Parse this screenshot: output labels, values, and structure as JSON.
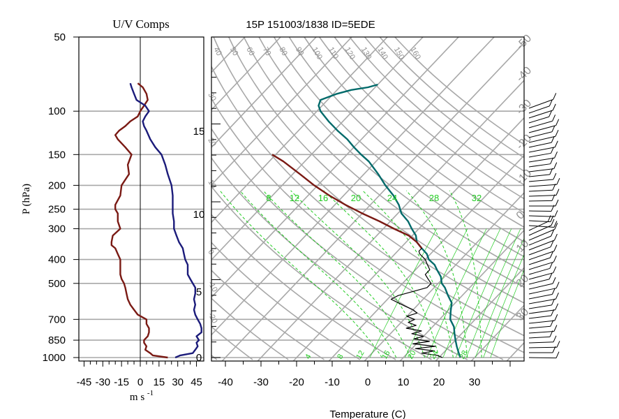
{
  "chart_data": [
    {
      "type": "line",
      "title": "U/V Comps",
      "xlabel": "m s -1",
      "ylabel": "P (hPa)",
      "xlim": [
        -50,
        50
      ],
      "xticks": [
        "-45",
        "-30",
        "-15",
        "0",
        "15",
        "30",
        "45"
      ],
      "ylim": [
        1000,
        50
      ],
      "ylog": true,
      "yticks": [
        "50",
        "100",
        "150",
        "200",
        "250",
        "300",
        "400",
        "500",
        "700",
        "850",
        "1000"
      ],
      "series": [
        {
          "color": "#7a1a14",
          "p": [
            1000,
            980,
            960,
            930,
            900,
            870,
            850,
            820,
            790,
            760,
            730,
            700,
            670,
            640,
            610,
            580,
            550,
            520,
            500,
            480,
            460,
            440,
            420,
            400,
            380,
            360,
            350,
            340,
            320,
            300,
            280,
            260,
            250,
            240,
            220,
            200,
            180,
            165,
            150,
            140,
            130,
            125,
            120,
            115,
            110,
            105,
            100,
            95,
            90,
            85,
            80,
            77
          ],
          "values": [
            22,
            10,
            8,
            4,
            5,
            3,
            3,
            6,
            7,
            7,
            5,
            5,
            -2,
            -5,
            -8,
            -10,
            -11,
            -12,
            -13,
            -15,
            -16,
            -16,
            -16,
            -16,
            -18,
            -20,
            -23,
            -23,
            -22,
            -16,
            -18,
            -18,
            -20,
            -20,
            -16,
            -15,
            -9,
            -10,
            -7,
            -12,
            -18,
            -20,
            -17,
            -12,
            -8,
            -2,
            0,
            3,
            6,
            5,
            2,
            -2
          ]
        },
        {
          "color": "#1b1b7a",
          "p": [
            1000,
            980,
            960,
            930,
            900,
            870,
            850,
            820,
            790,
            760,
            730,
            700,
            670,
            640,
            610,
            580,
            550,
            520,
            500,
            480,
            460,
            440,
            420,
            400,
            380,
            360,
            340,
            320,
            300,
            280,
            260,
            240,
            220,
            200,
            180,
            165,
            150,
            140,
            130,
            120,
            115,
            110,
            105,
            100,
            95,
            90,
            85,
            80,
            77
          ],
          "values": [
            28,
            32,
            42,
            44,
            46,
            45,
            47,
            45,
            49,
            49,
            48,
            46,
            44,
            43,
            44,
            43,
            44,
            44,
            42,
            40,
            38,
            38,
            38,
            36,
            35,
            34,
            31,
            29,
            27,
            27,
            26,
            26,
            26,
            25,
            22,
            20,
            17,
            12,
            8,
            5,
            3,
            2,
            4,
            7,
            4,
            -3,
            -5,
            -7,
            -8
          ]
        }
      ]
    },
    {
      "type": "line",
      "title": "15P 151003/1838 ID=5EDE",
      "xlabel": "Temperature (C)",
      "xlim": [
        -45,
        45
      ],
      "xticks": [
        "-40",
        "-30",
        "-20",
        "-10",
        "0",
        "10",
        "20",
        "30"
      ],
      "height_labels": [
        "15",
        "10",
        "5",
        "0"
      ],
      "mixing_ratio_labels": [
        "8",
        "12",
        "16",
        "20",
        "24",
        "28",
        "32"
      ],
      "mixing_ratio_bottom_labels": [
        "4",
        "8",
        "12",
        "16",
        "20",
        "24",
        "28"
      ],
      "theta_labels": [
        "40",
        "50",
        "60",
        "70",
        "80",
        "90",
        "100",
        "110",
        "120",
        "130",
        "140",
        "150",
        "160"
      ],
      "theta_left_labels": [
        "30",
        "20",
        "10",
        "0",
        "-10",
        "-20"
      ],
      "isotherm_labels": [
        "-50",
        "-40",
        "-30",
        "-20",
        "-10",
        "0",
        "10",
        "20",
        "30"
      ],
      "series": [
        {
          "name": "",
          "color": "#006a6a",
          "p": [
            1000,
            950,
            900,
            850,
            800,
            750,
            700,
            650,
            600,
            560,
            520,
            500,
            470,
            440,
            420,
            400,
            380,
            360,
            340,
            320,
            300,
            280,
            260,
            240,
            220,
            200,
            180,
            160,
            150,
            140,
            130,
            120,
            110,
            100,
            95,
            90,
            85,
            82,
            80,
            78
          ],
          "values": [
            26,
            24,
            22,
            20,
            18,
            16,
            13,
            11,
            9,
            6,
            3,
            1,
            -1,
            -4,
            -6,
            -9,
            -11,
            -14,
            -17,
            -19,
            -22,
            -25,
            -29,
            -32,
            -36,
            -41,
            -46,
            -52,
            -56,
            -60,
            -64,
            -69,
            -74,
            -79,
            -81,
            -82,
            -79,
            -76,
            -72,
            -70
          ]
        },
        {
          "name": "",
          "color": "#7a1a14",
          "p": [
            360,
            340,
            320,
            300,
            280,
            260,
            240,
            220,
            200,
            180,
            160,
            150
          ],
          "values": [
            -14,
            -17,
            -21,
            -27,
            -33,
            -40,
            -47,
            -54,
            -61,
            -68,
            -76,
            -81
          ]
        },
        {
          "name": "",
          "color": "#000000",
          "p": [
            1000,
            980,
            960,
            940,
            920,
            900,
            880,
            860,
            840,
            820,
            800,
            780,
            760,
            740,
            720,
            700,
            680,
            660,
            640,
            620,
            600,
            580,
            560,
            540,
            520,
            500,
            480,
            460,
            440,
            420,
            400,
            380,
            370,
            360
          ],
          "values": [
            21,
            19,
            14,
            17,
            11,
            16,
            9,
            13,
            8,
            10,
            6,
            8,
            3,
            5,
            2,
            3,
            0,
            2,
            0,
            -3,
            -6,
            -9,
            -8,
            -5,
            -2,
            -2,
            -4,
            -6,
            -6,
            -8,
            -10,
            -13,
            -14,
            -14
          ]
        }
      ]
    }
  ]
}
